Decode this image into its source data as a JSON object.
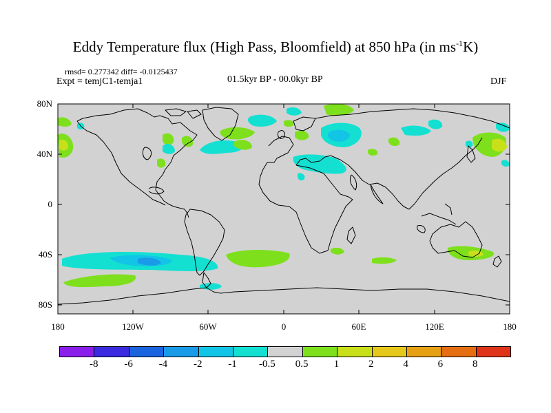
{
  "title": "Eddy Temperature flux (High Pass, Bloomfield) at 850 hPa (in ms",
  "title_sup": "-1",
  "title_end": "K)",
  "stats": "rmsd= 0.277342 diff= -0.0125437",
  "expt": "Expt = temjC1-temja1",
  "period": "01.5kyr BP - 00.0kyr BP",
  "season": "DJF",
  "lat_ticks": [
    "80N",
    "40N",
    "0",
    "40S",
    "80S"
  ],
  "lon_ticks": [
    "180",
    "120W",
    "60W",
    "0",
    "60E",
    "120E",
    "180"
  ],
  "colorbar": {
    "labels": [
      "-8",
      "-6",
      "-4",
      "-2",
      "-1",
      "-0.5",
      "0.5",
      "1",
      "2",
      "4",
      "6",
      "8"
    ],
    "colors": [
      "#8a1eea",
      "#3a2be0",
      "#1a64e0",
      "#1a9be8",
      "#12c4e6",
      "#14e0d2",
      "#d2d2d2",
      "#7ee01c",
      "#c8e01a",
      "#e6c81a",
      "#e6a014",
      "#e66e12",
      "#e0341a"
    ]
  },
  "colors": {
    "land_bg": "#d2d2d2",
    "coast": "#000000",
    "neg_light": "#14e0d2",
    "neg_mid": "#12c4e6",
    "pos_light": "#7ee01c",
    "pos_mid": "#c8e01a"
  }
}
